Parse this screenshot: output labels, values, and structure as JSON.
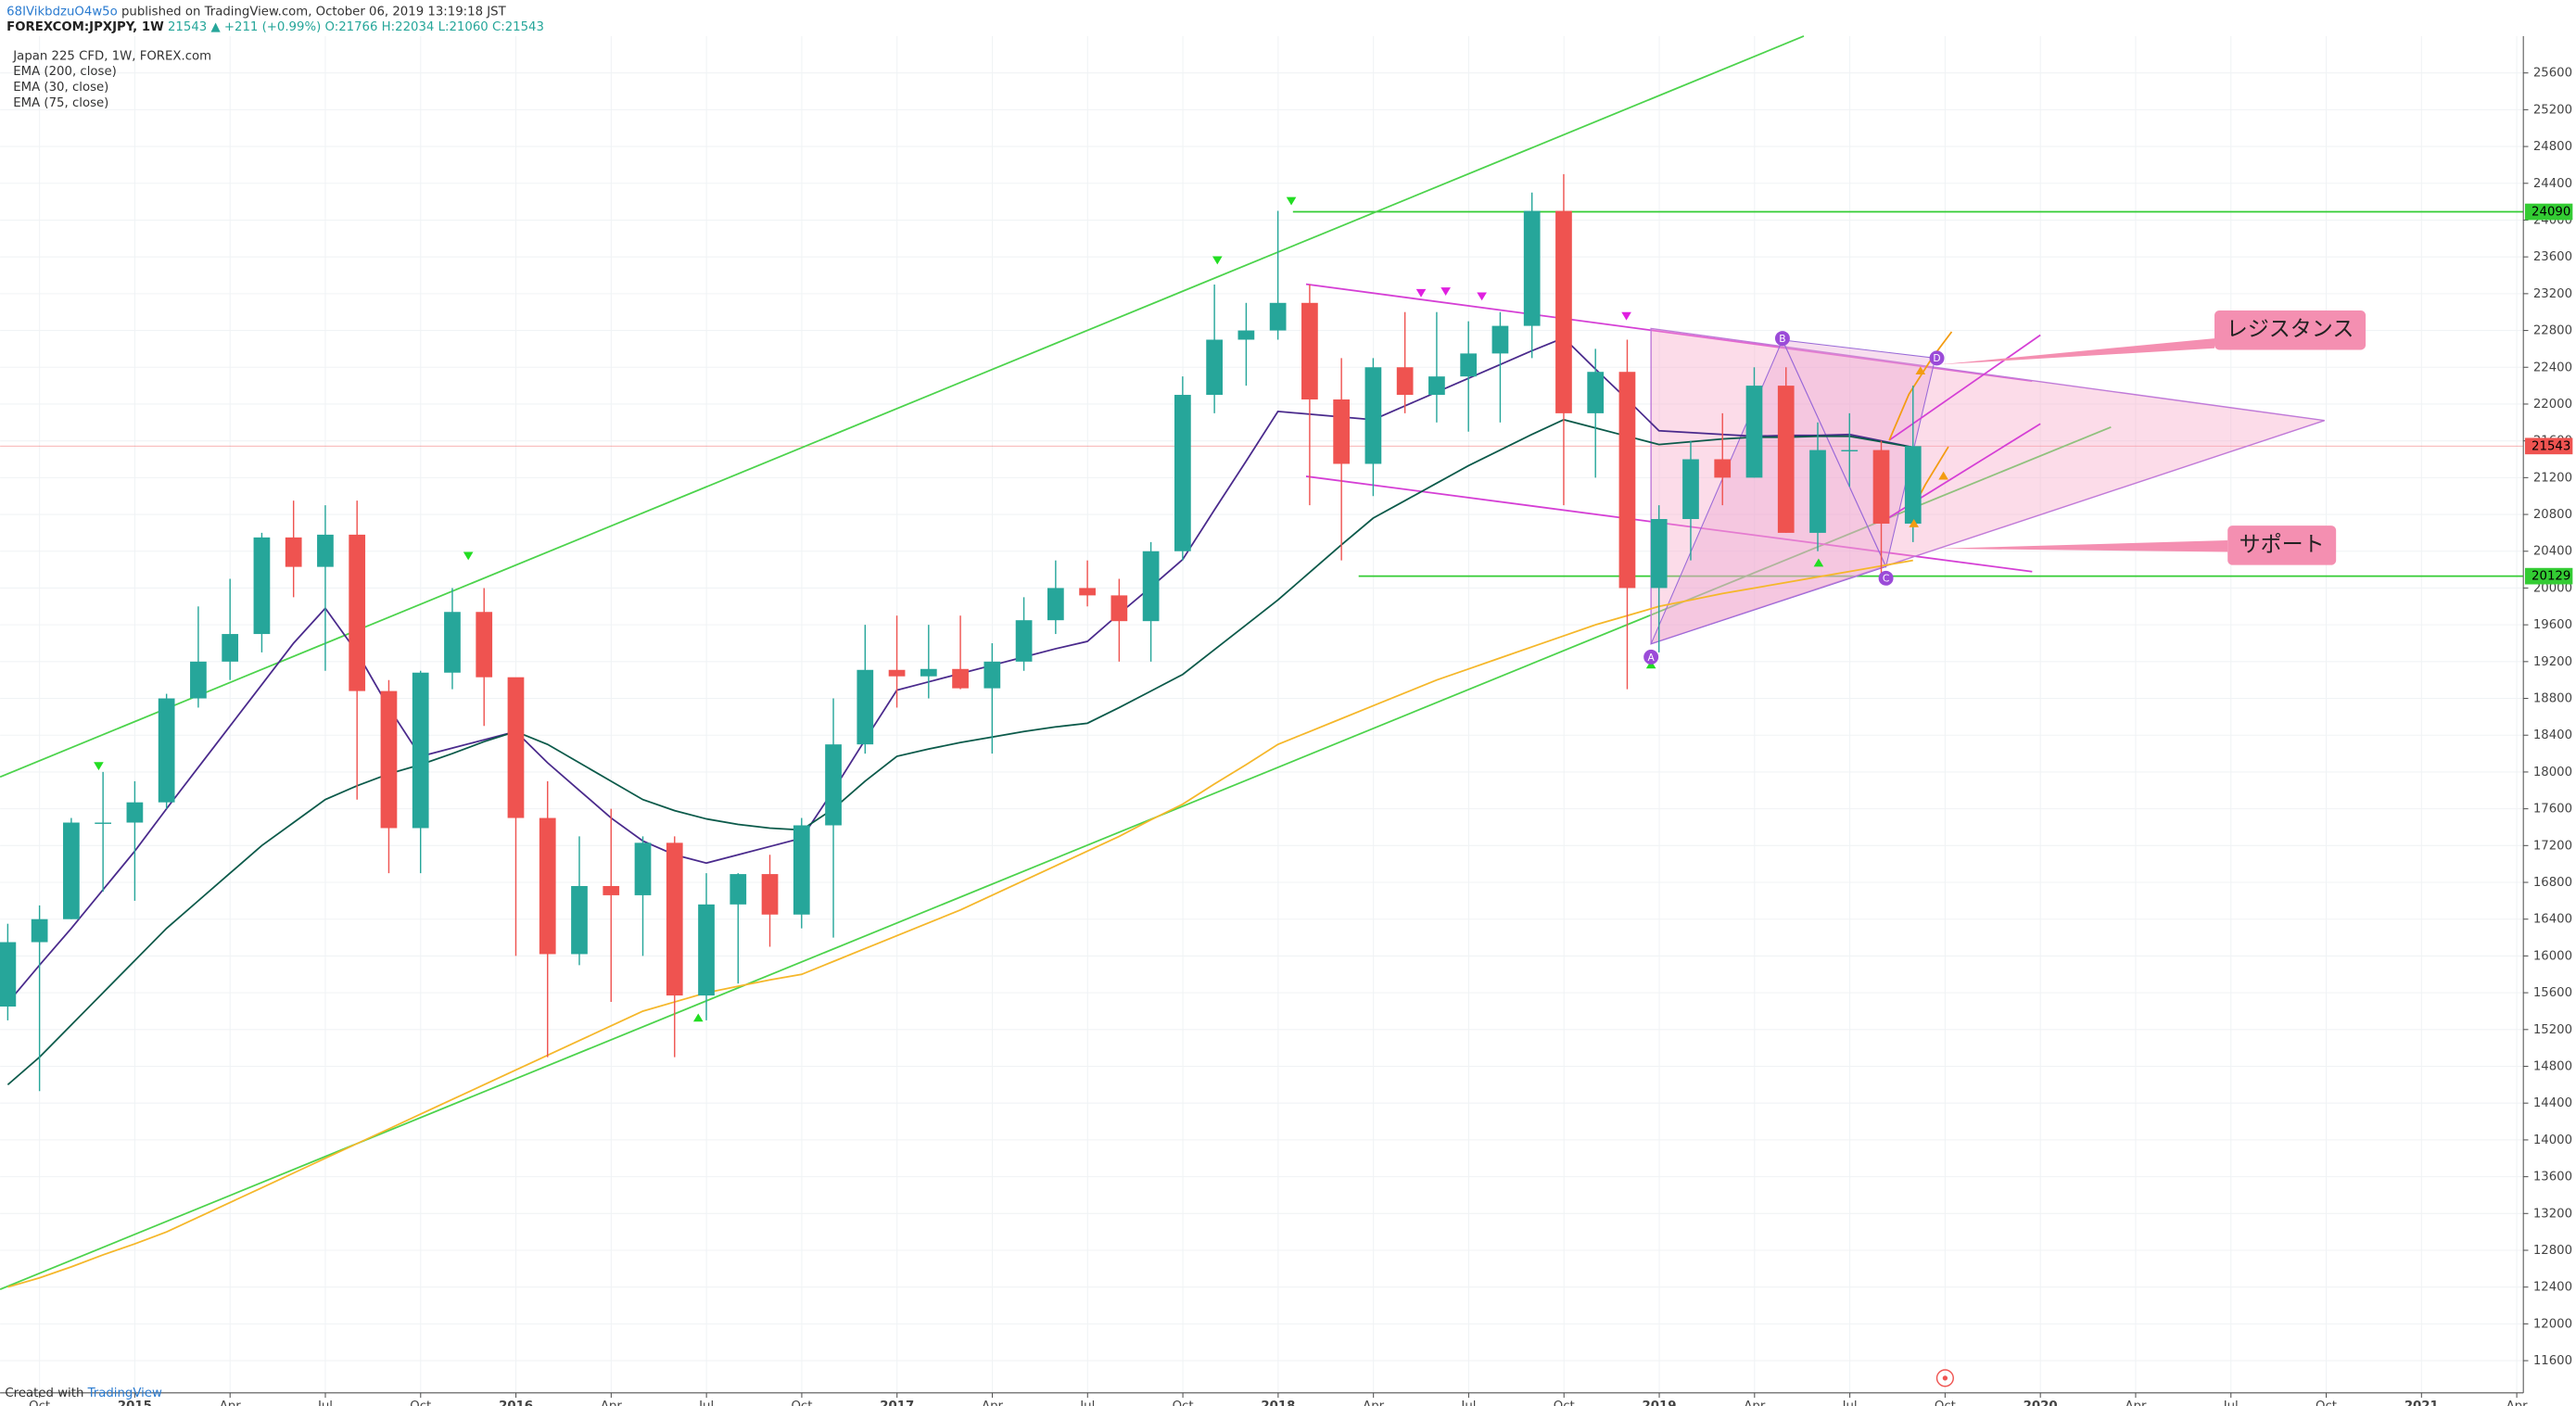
{
  "header": {
    "author": "68IVikbdzuO4w5o",
    "published": "published on TradingView.com, October 06, 2019 13:19:18 JST",
    "symbol": "FOREXCOM:JPXJPY, 1W",
    "change": "21543 ▲ +211 (+0.99%)",
    "ohlc": "O:21766 H:22034 L:21060 C:21543"
  },
  "chart_data": {
    "type": "candlestick",
    "title": "Japan 225 CFD, 1W, FOREX.com",
    "x_labels": [
      "Oct",
      "2015",
      "Apr",
      "Jul",
      "Oct",
      "2016",
      "Apr",
      "Jul",
      "Oct",
      "2017",
      "Apr",
      "Jul",
      "Oct",
      "2018",
      "Apr",
      "Jul",
      "Oct",
      "2019",
      "Apr",
      "Jul",
      "Oct",
      "2020",
      "Apr",
      "Jul",
      "Oct",
      "2021",
      "Apr"
    ],
    "candles": {
      "open": [
        15450,
        16150,
        16400,
        17450,
        17450,
        17670,
        18800,
        19200,
        19500,
        20550,
        20230,
        20580,
        18880,
        17390,
        19080,
        19740,
        19030,
        17500,
        16020,
        16760,
        16660,
        17230,
        15570,
        16560,
        16890,
        16450,
        17420,
        18300,
        19110,
        19040,
        19120,
        18910,
        19200,
        19650,
        20000,
        19920,
        19640,
        20400,
        22100,
        22700,
        22800,
        23100,
        22050,
        21350,
        22400,
        22100,
        22300,
        22550,
        22850,
        24100,
        21900,
        22350,
        20000,
        20750,
        21400,
        21200,
        22200,
        20600,
        21500,
        21500,
        20700
      ],
      "high": [
        16350,
        16550,
        17500,
        18000,
        17900,
        18850,
        19800,
        20100,
        20600,
        20950,
        20900,
        20950,
        19000,
        19100,
        20000,
        20000,
        19000,
        17900,
        17300,
        17600,
        17300,
        17300,
        16900,
        16900,
        17100,
        17500,
        18800,
        19600,
        19700,
        19600,
        19700,
        19400,
        19900,
        20300,
        20300,
        20100,
        20500,
        22300,
        23300,
        23100,
        24100,
        23300,
        22500,
        22500,
        23000,
        23000,
        22900,
        23000,
        24300,
        24500,
        22600,
        22700,
        20900,
        21600,
        21900,
        22400,
        22400,
        21800,
        21900,
        21600,
        22200
      ],
      "low": [
        15300,
        14530,
        16400,
        16700,
        16600,
        17600,
        18700,
        19000,
        19300,
        19900,
        19100,
        17700,
        16900,
        16900,
        18900,
        18500,
        16000,
        14900,
        15900,
        15500,
        16000,
        14900,
        15300,
        15700,
        16100,
        16300,
        16200,
        18200,
        18700,
        18800,
        18900,
        18200,
        19100,
        19500,
        19800,
        19200,
        19200,
        20300,
        21900,
        22200,
        22700,
        20900,
        20300,
        21000,
        21900,
        21800,
        21700,
        21800,
        22500,
        20900,
        21200,
        18900,
        19300,
        20300,
        20900,
        21200,
        20600,
        20400,
        21100,
        20100,
        20500
      ],
      "close": [
        16150,
        16400,
        17450,
        17450,
        17670,
        18800,
        19200,
        19500,
        20550,
        20230,
        20580,
        18880,
        17390,
        19080,
        19740,
        19030,
        17500,
        16020,
        16760,
        16660,
        17230,
        15570,
        16560,
        16890,
        16450,
        17420,
        18300,
        19110,
        19040,
        19120,
        18910,
        19200,
        19650,
        20000,
        19920,
        19640,
        20400,
        22100,
        22700,
        22800,
        23100,
        22050,
        21350,
        22400,
        22100,
        22300,
        22550,
        22850,
        24100,
        21900,
        22350,
        20000,
        20750,
        21400,
        21200,
        22200,
        20600,
        21500,
        21500,
        20700,
        21543
      ]
    },
    "up_color": "#26a69a",
    "down_color": "#ef5350",
    "series": [
      {
        "name": "EMA (200, close)",
        "color": "#f5b72a",
        "values": [
          12400,
          12500,
          12620,
          12750,
          12870,
          13000,
          13160,
          13320,
          13480,
          13640,
          13800,
          13960,
          14120,
          14280,
          14440,
          14600,
          14760,
          14920,
          15080,
          15240,
          15400,
          15500,
          15600,
          15670,
          15740,
          15800,
          15940,
          16080,
          16220,
          16360,
          16500,
          16660,
          16820,
          16980,
          17140,
          17300,
          17480,
          17650,
          17870,
          18080,
          18300,
          18440,
          18580,
          18720,
          18860,
          19000,
          19120,
          19240,
          19360,
          19480,
          19600,
          19700,
          19800,
          19870,
          19940,
          20000,
          20060,
          20120,
          20180,
          20240,
          20300
        ]
      },
      {
        "name": "EMA (30, close)",
        "color": "#4a2a8c",
        "values": [
          15490,
          15900,
          16300,
          16720,
          17140,
          17600,
          18050,
          18500,
          18950,
          19400,
          19780,
          19300,
          18700,
          18170,
          18260,
          18350,
          18440,
          18100,
          17800,
          17500,
          17250,
          17100,
          17010,
          17100,
          17190,
          17280,
          17800,
          18350,
          18890,
          18980,
          19070,
          19160,
          19250,
          19340,
          19420,
          19720,
          20010,
          20310,
          20850,
          21380,
          21920,
          21890,
          21860,
          21830,
          21980,
          22130,
          22280,
          22430,
          22580,
          22720,
          22380,
          22050,
          21710,
          21690,
          21670,
          21650,
          21660,
          21660,
          21670,
          21600,
          21530
        ]
      },
      {
        "name": "EMA (75, close)",
        "color": "#0b5a4a",
        "values": [
          14600,
          14900,
          15250,
          15600,
          15950,
          16300,
          16600,
          16900,
          17200,
          17450,
          17700,
          17850,
          17980,
          18080,
          18200,
          18330,
          18440,
          18300,
          18100,
          17900,
          17700,
          17580,
          17490,
          17430,
          17390,
          17370,
          17600,
          17900,
          18170,
          18250,
          18320,
          18380,
          18440,
          18490,
          18530,
          18700,
          18880,
          19060,
          19330,
          19600,
          19870,
          20170,
          20470,
          20760,
          20950,
          21140,
          21330,
          21500,
          21670,
          21830,
          21740,
          21650,
          21560,
          21590,
          21620,
          21640,
          21640,
          21650,
          21650,
          21590,
          21530
        ]
      }
    ],
    "price_labels": [
      {
        "value": 24090,
        "color": "#33cc33"
      },
      {
        "value": 21543,
        "color": "#ef5350"
      },
      {
        "value": 20129,
        "color": "#33cc33"
      }
    ],
    "ylim": [
      11250,
      26000
    ],
    "yticks": [
      11600,
      12000,
      12400,
      12800,
      13200,
      13600,
      14000,
      14400,
      14800,
      15200,
      15600,
      16000,
      16400,
      16800,
      17200,
      17600,
      18000,
      18400,
      18800,
      19200,
      19600,
      20000,
      20400,
      20800,
      21200,
      21600,
      22000,
      22400,
      22800,
      23200,
      23600,
      24000,
      24400,
      24800,
      25200,
      25600
    ],
    "annotations": {
      "resistance": "レジスタンス",
      "support": "サポート",
      "a": "A",
      "b": "B",
      "c": "C",
      "d": "D"
    }
  },
  "footer": {
    "created": "Created with",
    "brand": "TradingView"
  }
}
